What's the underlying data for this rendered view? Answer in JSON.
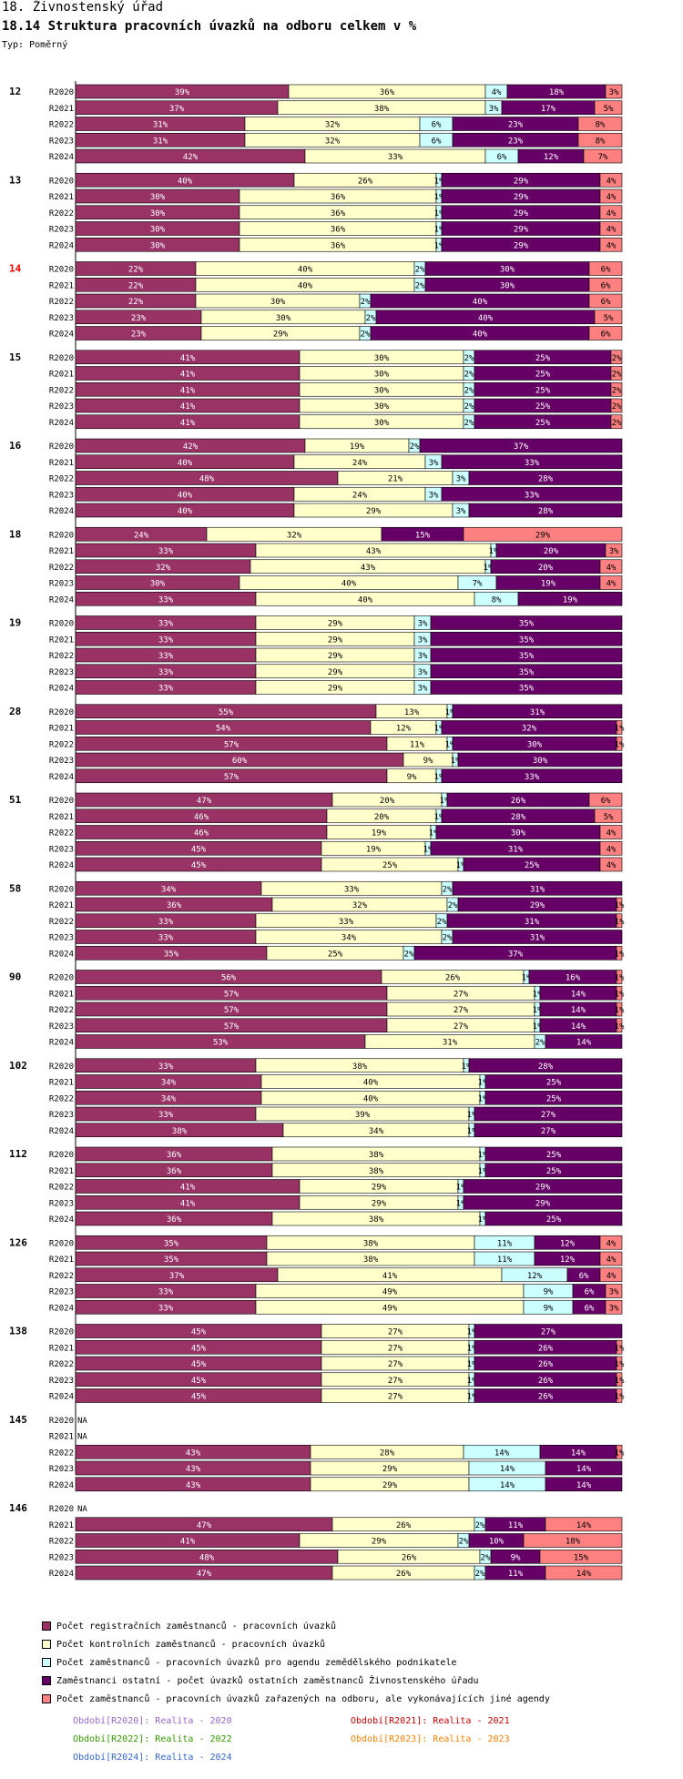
{
  "header": {
    "line1": "18. Živnostenský úřad",
    "line2": "18.14 Struktura pracovních úvazků na odboru celkem v %",
    "type_label": "Typ: Poměrný"
  },
  "chart_data": {
    "type": "stacked-bar-horizontal",
    "title": "18.14 Struktura pracovních úvazků na odboru celkem v %",
    "colors": [
      "#993366",
      "#ffffcc",
      "#ccffff",
      "#660066",
      "#ff8080"
    ],
    "series_names": [
      "Počet registračních zaměstnanců - pracovních úvazků",
      "Počet kontrolních zaměstnanců - pracovních úvazků",
      "Počet zaměstnanců - pracovních úvazků pro agendu zemědělského podnikatele",
      "Zaměstnanci ostatní - počet úvazků ostatních zaměstnanců Živnostenského úřadu",
      "Počet zaměstnanců - pracovních úvazků zařazených na odboru, ale vykonávajících jiné agendy"
    ],
    "groups": [
      {
        "id": "12",
        "highlight": false,
        "rows": [
          {
            "label": "R2020",
            "values": [
              39,
              36,
              4,
              18,
              3
            ]
          },
          {
            "label": "R2021",
            "values": [
              37,
              38,
              3,
              17,
              5
            ]
          },
          {
            "label": "R2022",
            "values": [
              31,
              32,
              6,
              23,
              8
            ]
          },
          {
            "label": "R2023",
            "values": [
              31,
              32,
              6,
              23,
              8
            ]
          },
          {
            "label": "R2024",
            "values": [
              42,
              33,
              6,
              12,
              7
            ]
          }
        ]
      },
      {
        "id": "13",
        "highlight": false,
        "rows": [
          {
            "label": "R2020",
            "values": [
              40,
              26,
              1,
              29,
              4
            ]
          },
          {
            "label": "R2021",
            "values": [
              30,
              36,
              1,
              29,
              4
            ]
          },
          {
            "label": "R2022",
            "values": [
              30,
              36,
              1,
              29,
              4
            ]
          },
          {
            "label": "R2023",
            "values": [
              30,
              36,
              1,
              29,
              4
            ]
          },
          {
            "label": "R2024",
            "values": [
              30,
              36,
              1,
              29,
              4
            ]
          }
        ]
      },
      {
        "id": "14",
        "highlight": true,
        "rows": [
          {
            "label": "R2020",
            "values": [
              22,
              40,
              2,
              30,
              6
            ]
          },
          {
            "label": "R2021",
            "values": [
              22,
              40,
              2,
              30,
              6
            ]
          },
          {
            "label": "R2022",
            "values": [
              22,
              30,
              2,
              40,
              6
            ]
          },
          {
            "label": "R2023",
            "values": [
              23,
              30,
              2,
              40,
              5
            ]
          },
          {
            "label": "R2024",
            "values": [
              23,
              29,
              2,
              40,
              6
            ]
          }
        ]
      },
      {
        "id": "15",
        "highlight": false,
        "rows": [
          {
            "label": "R2020",
            "values": [
              41,
              30,
              2,
              25,
              2
            ]
          },
          {
            "label": "R2021",
            "values": [
              41,
              30,
              2,
              25,
              2
            ]
          },
          {
            "label": "R2022",
            "values": [
              41,
              30,
              2,
              25,
              2
            ]
          },
          {
            "label": "R2023",
            "values": [
              41,
              30,
              2,
              25,
              2
            ]
          },
          {
            "label": "R2024",
            "values": [
              41,
              30,
              2,
              25,
              2
            ]
          }
        ]
      },
      {
        "id": "16",
        "highlight": false,
        "rows": [
          {
            "label": "R2020",
            "values": [
              42,
              19,
              2,
              37,
              0
            ]
          },
          {
            "label": "R2021",
            "values": [
              40,
              24,
              3,
              33,
              0
            ]
          },
          {
            "label": "R2022",
            "values": [
              48,
              21,
              3,
              28,
              0
            ]
          },
          {
            "label": "R2023",
            "values": [
              40,
              24,
              3,
              33,
              0
            ]
          },
          {
            "label": "R2024",
            "values": [
              40,
              29,
              3,
              28,
              0
            ]
          }
        ]
      },
      {
        "id": "18",
        "highlight": false,
        "rows": [
          {
            "label": "R2020",
            "values": [
              24,
              32,
              0,
              15,
              29
            ]
          },
          {
            "label": "R2021",
            "values": [
              33,
              43,
              1,
              20,
              3
            ]
          },
          {
            "label": "R2022",
            "values": [
              32,
              43,
              1,
              20,
              4
            ]
          },
          {
            "label": "R2023",
            "values": [
              30,
              40,
              7,
              19,
              4
            ]
          },
          {
            "label": "R2024",
            "values": [
              33,
              40,
              8,
              19,
              0
            ]
          }
        ]
      },
      {
        "id": "19",
        "highlight": false,
        "rows": [
          {
            "label": "R2020",
            "values": [
              33,
              29,
              3,
              35,
              0
            ]
          },
          {
            "label": "R2021",
            "values": [
              33,
              29,
              3,
              35,
              0
            ]
          },
          {
            "label": "R2022",
            "values": [
              33,
              29,
              3,
              35,
              0
            ]
          },
          {
            "label": "R2023",
            "values": [
              33,
              29,
              3,
              35,
              0
            ]
          },
          {
            "label": "R2024",
            "values": [
              33,
              29,
              3,
              35,
              0
            ]
          }
        ]
      },
      {
        "id": "28",
        "highlight": false,
        "rows": [
          {
            "label": "R2020",
            "values": [
              55,
              13,
              1,
              31,
              0
            ]
          },
          {
            "label": "R2021",
            "values": [
              54,
              12,
              1,
              32,
              1
            ]
          },
          {
            "label": "R2022",
            "values": [
              57,
              11,
              1,
              30,
              1
            ]
          },
          {
            "label": "R2023",
            "values": [
              60,
              9,
              1,
              30,
              0
            ]
          },
          {
            "label": "R2024",
            "values": [
              57,
              9,
              1,
              33,
              0
            ]
          }
        ]
      },
      {
        "id": "51",
        "highlight": false,
        "rows": [
          {
            "label": "R2020",
            "values": [
              47,
              20,
              1,
              26,
              6
            ]
          },
          {
            "label": "R2021",
            "values": [
              46,
              20,
              1,
              28,
              5
            ]
          },
          {
            "label": "R2022",
            "values": [
              46,
              19,
              1,
              30,
              4
            ]
          },
          {
            "label": "R2023",
            "values": [
              45,
              19,
              1,
              31,
              4
            ]
          },
          {
            "label": "R2024",
            "values": [
              45,
              25,
              1,
              25,
              4
            ]
          }
        ]
      },
      {
        "id": "58",
        "highlight": false,
        "rows": [
          {
            "label": "R2020",
            "values": [
              34,
              33,
              2,
              31,
              0
            ]
          },
          {
            "label": "R2021",
            "values": [
              36,
              32,
              2,
              29,
              1
            ]
          },
          {
            "label": "R2022",
            "values": [
              33,
              33,
              2,
              31,
              1
            ]
          },
          {
            "label": "R2023",
            "values": [
              33,
              34,
              2,
              31,
              0
            ]
          },
          {
            "label": "R2024",
            "values": [
              35,
              25,
              2,
              37,
              1
            ]
          }
        ]
      },
      {
        "id": "90",
        "highlight": false,
        "rows": [
          {
            "label": "R2020",
            "values": [
              56,
              26,
              1,
              16,
              1
            ]
          },
          {
            "label": "R2021",
            "values": [
              57,
              27,
              1,
              14,
              1
            ]
          },
          {
            "label": "R2022",
            "values": [
              57,
              27,
              1,
              14,
              1
            ]
          },
          {
            "label": "R2023",
            "values": [
              57,
              27,
              1,
              14,
              1
            ]
          },
          {
            "label": "R2024",
            "values": [
              53,
              31,
              2,
              14,
              0
            ]
          }
        ]
      },
      {
        "id": "102",
        "highlight": false,
        "rows": [
          {
            "label": "R2020",
            "values": [
              33,
              38,
              1,
              28,
              0
            ]
          },
          {
            "label": "R2021",
            "values": [
              34,
              40,
              1,
              25,
              0
            ]
          },
          {
            "label": "R2022",
            "values": [
              34,
              40,
              1,
              25,
              0
            ]
          },
          {
            "label": "R2023",
            "values": [
              33,
              39,
              1,
              27,
              0
            ]
          },
          {
            "label": "R2024",
            "values": [
              38,
              34,
              1,
              27,
              0
            ]
          }
        ]
      },
      {
        "id": "112",
        "highlight": false,
        "rows": [
          {
            "label": "R2020",
            "values": [
              36,
              38,
              1,
              25,
              0
            ]
          },
          {
            "label": "R2021",
            "values": [
              36,
              38,
              1,
              25,
              0
            ]
          },
          {
            "label": "R2022",
            "values": [
              41,
              29,
              1,
              29,
              0
            ]
          },
          {
            "label": "R2023",
            "values": [
              41,
              29,
              1,
              29,
              0
            ]
          },
          {
            "label": "R2024",
            "values": [
              36,
              38,
              1,
              25,
              0
            ]
          }
        ]
      },
      {
        "id": "126",
        "highlight": false,
        "rows": [
          {
            "label": "R2020",
            "values": [
              35,
              38,
              11,
              12,
              4
            ]
          },
          {
            "label": "R2021",
            "values": [
              35,
              38,
              11,
              12,
              4
            ]
          },
          {
            "label": "R2022",
            "values": [
              37,
              41,
              12,
              6,
              4
            ]
          },
          {
            "label": "R2023",
            "values": [
              33,
              49,
              9,
              6,
              3
            ]
          },
          {
            "label": "R2024",
            "values": [
              33,
              49,
              9,
              6,
              3
            ]
          }
        ]
      },
      {
        "id": "138",
        "highlight": false,
        "rows": [
          {
            "label": "R2020",
            "values": [
              45,
              27,
              1,
              27,
              0
            ]
          },
          {
            "label": "R2021",
            "values": [
              45,
              27,
              1,
              26,
              1
            ]
          },
          {
            "label": "R2022",
            "values": [
              45,
              27,
              1,
              26,
              1
            ]
          },
          {
            "label": "R2023",
            "values": [
              45,
              27,
              1,
              26,
              1
            ]
          },
          {
            "label": "R2024",
            "values": [
              45,
              27,
              1,
              26,
              1
            ]
          }
        ]
      },
      {
        "id": "145",
        "highlight": false,
        "rows": [
          {
            "label": "R2020",
            "na": true
          },
          {
            "label": "R2021",
            "na": true
          },
          {
            "label": "R2022",
            "values": [
              43,
              28,
              14,
              14,
              1
            ]
          },
          {
            "label": "R2023",
            "values": [
              43,
              29,
              14,
              14,
              0
            ]
          },
          {
            "label": "R2024",
            "values": [
              43,
              29,
              14,
              14,
              0
            ]
          }
        ]
      },
      {
        "id": "146",
        "highlight": false,
        "rows": [
          {
            "label": "R2020",
            "na": true
          },
          {
            "label": "R2021",
            "values": [
              47,
              26,
              2,
              11,
              14
            ]
          },
          {
            "label": "R2022",
            "values": [
              41,
              29,
              2,
              10,
              18
            ]
          },
          {
            "label": "R2023",
            "values": [
              48,
              26,
              2,
              9,
              15
            ]
          },
          {
            "label": "R2024",
            "values": [
              47,
              26,
              2,
              11,
              14
            ]
          }
        ]
      }
    ],
    "na_label": "NA"
  },
  "legend": [
    {
      "label": "Počet registračních zaměstnanců - pracovních úvazků",
      "color": "#993366"
    },
    {
      "label": "Počet kontrolních zaměstnanců - pracovních úvazků",
      "color": "#ffffcc"
    },
    {
      "label": "Počet zaměstnanců - pracovních úvazků pro agendu zemědělského podnikatele",
      "color": "#ccffff"
    },
    {
      "label": "Zaměstnanci ostatní - počet úvazků ostatních zaměstnanců Živnostenského úřadu",
      "color": "#660066"
    },
    {
      "label": "Počet zaměstnanců - pracovních úvazků zařazených na odboru, ale vykonávajících jiné agendy",
      "color": "#ff8080"
    }
  ],
  "periods": [
    {
      "label": "Období[R2020]: Realita - 2020",
      "color": "#9966cc"
    },
    {
      "label": "Období[R2021]: Realita - 2021",
      "color": "#cc0000"
    },
    {
      "label": "Období[R2022]: Realita - 2022",
      "color": "#339900"
    },
    {
      "label": "Období[R2023]: Realita - 2023",
      "color": "#ff8000"
    },
    {
      "label": "Období[R2024]: Realita - 2024",
      "color": "#3366cc"
    }
  ]
}
